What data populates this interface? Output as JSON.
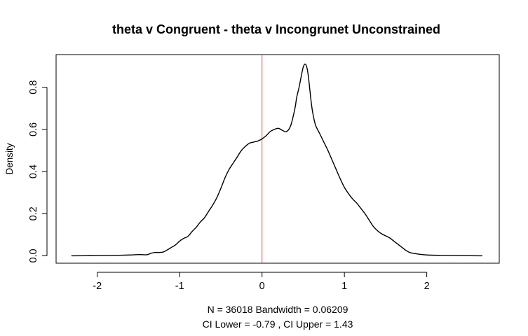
{
  "chart_data": {
    "type": "line",
    "title": "theta v Congruent - theta v Incongrunet Unconstrained",
    "xlabel_lines": [
      "N = 36018   Bandwidth = 0.06209",
      "CI Lower =  -0.79 , CI Upper =  1.43"
    ],
    "ylabel": "Density",
    "xlim": [
      -2.5,
      2.88
    ],
    "ylim": [
      -0.035,
      0.955
    ],
    "x_ticks": [
      -2,
      -1,
      0,
      1,
      2
    ],
    "x_tick_labels": [
      "-2",
      "-1",
      "0",
      "1",
      "2"
    ],
    "y_ticks": [
      0.0,
      0.2,
      0.4,
      0.6,
      0.8
    ],
    "y_tick_labels": [
      "0.0",
      "0.2",
      "0.4",
      "0.6",
      "0.8"
    ],
    "grid": false,
    "reference_line": {
      "x": 0,
      "color": "#d9534f"
    },
    "series": [
      {
        "color": "#000000",
        "x": [
          -2.31,
          -2.0,
          -1.8,
          -1.6,
          -1.5,
          -1.4,
          -1.35,
          -1.3,
          -1.25,
          -1.2,
          -1.15,
          -1.1,
          -1.05,
          -1.0,
          -0.95,
          -0.9,
          -0.85,
          -0.8,
          -0.75,
          -0.7,
          -0.65,
          -0.6,
          -0.55,
          -0.5,
          -0.45,
          -0.4,
          -0.35,
          -0.3,
          -0.25,
          -0.2,
          -0.15,
          -0.1,
          -0.05,
          0.0,
          0.05,
          0.1,
          0.15,
          0.2,
          0.25,
          0.3,
          0.35,
          0.4,
          0.42,
          0.45,
          0.48,
          0.5,
          0.52,
          0.54,
          0.56,
          0.58,
          0.6,
          0.62,
          0.65,
          0.7,
          0.75,
          0.8,
          0.85,
          0.9,
          0.95,
          1.0,
          1.05,
          1.1,
          1.15,
          1.2,
          1.25,
          1.3,
          1.35,
          1.4,
          1.45,
          1.5,
          1.55,
          1.6,
          1.65,
          1.7,
          1.75,
          1.8,
          1.9,
          2.0,
          2.2,
          2.4,
          2.67
        ],
        "y": [
          0.0,
          0.001,
          0.002,
          0.004,
          0.006,
          0.005,
          0.012,
          0.016,
          0.016,
          0.018,
          0.028,
          0.04,
          0.052,
          0.07,
          0.083,
          0.092,
          0.115,
          0.135,
          0.16,
          0.18,
          0.21,
          0.24,
          0.275,
          0.32,
          0.37,
          0.41,
          0.44,
          0.47,
          0.5,
          0.52,
          0.535,
          0.54,
          0.545,
          0.555,
          0.57,
          0.59,
          0.6,
          0.605,
          0.595,
          0.59,
          0.62,
          0.7,
          0.75,
          0.8,
          0.86,
          0.895,
          0.91,
          0.9,
          0.86,
          0.79,
          0.72,
          0.67,
          0.62,
          0.58,
          0.54,
          0.5,
          0.455,
          0.41,
          0.365,
          0.325,
          0.295,
          0.27,
          0.25,
          0.225,
          0.2,
          0.17,
          0.14,
          0.12,
          0.105,
          0.095,
          0.085,
          0.07,
          0.055,
          0.04,
          0.025,
          0.015,
          0.008,
          0.004,
          0.002,
          0.001,
          0.0
        ]
      }
    ]
  }
}
